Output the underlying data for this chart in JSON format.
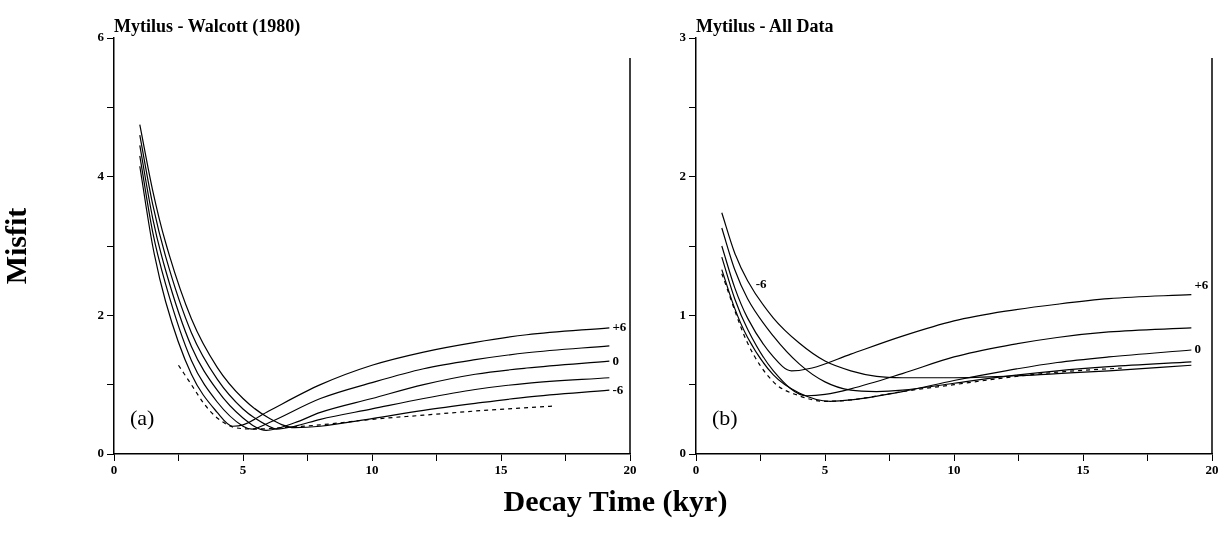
{
  "chart_data": [
    {
      "type": "line",
      "title": "Mytilus - Walcott (1980)",
      "ylabel": "Misfit",
      "xlabel": "Decay Time (kyr)",
      "xlim": [
        0,
        20
      ],
      "ylim": [
        0,
        6
      ],
      "xticks": [
        0,
        {
          "value": 2.5,
          "label": null
        },
        5,
        {
          "value": 7.5,
          "label": null
        },
        10,
        {
          "value": 12.5,
          "label": null
        },
        15,
        {
          "value": 17.5,
          "label": null
        },
        20
      ],
      "yticks": [
        0,
        {
          "value": 1,
          "label": null
        },
        2,
        {
          "value": 3,
          "label": null
        },
        4,
        {
          "value": 5,
          "label": null
        },
        6
      ],
      "grid": false,
      "legend": false,
      "marker": "none",
      "line_style": "solid",
      "series": [
        {
          "color": "#000000",
          "x": [
            1,
            1.5,
            2,
            3,
            4,
            4.6,
            5,
            6,
            8,
            10,
            12,
            14,
            16,
            19.2
          ],
          "values": [
            4.15,
            3.0,
            2.2,
            1.15,
            0.6,
            0.4,
            0.42,
            0.62,
            1.0,
            1.28,
            1.47,
            1.61,
            1.72,
            1.82
          ]
        },
        {
          "color": "#000000",
          "x": [
            1,
            1.5,
            2,
            3,
            4,
            5,
            5.35,
            6,
            8,
            10,
            12,
            14,
            16,
            19.2
          ],
          "values": [
            4.3,
            3.2,
            2.45,
            1.35,
            0.75,
            0.4,
            0.36,
            0.45,
            0.8,
            1.03,
            1.23,
            1.36,
            1.46,
            1.56
          ]
        },
        {
          "color": "#000000",
          "x": [
            1,
            1.5,
            2,
            3,
            4,
            5,
            5.9,
            7,
            8,
            10,
            12,
            14,
            16,
            19.2
          ],
          "values": [
            4.45,
            3.4,
            2.65,
            1.55,
            0.92,
            0.52,
            0.34,
            0.45,
            0.6,
            0.8,
            1.0,
            1.15,
            1.24,
            1.34
          ]
        },
        {
          "color": "#000000",
          "x": [
            1,
            1.5,
            2,
            3,
            4,
            5,
            6,
            6.3,
            7,
            8,
            10,
            12,
            14,
            16,
            19.2
          ],
          "values": [
            4.6,
            3.6,
            2.85,
            1.75,
            1.08,
            0.65,
            0.4,
            0.36,
            0.4,
            0.5,
            0.65,
            0.8,
            0.93,
            1.02,
            1.1
          ]
        },
        {
          "color": "#000000",
          "x": [
            1,
            1.5,
            2,
            3,
            4,
            5,
            6,
            7,
            8,
            10,
            12,
            14,
            16,
            19.2
          ],
          "values": [
            4.75,
            3.8,
            3.05,
            1.95,
            1.25,
            0.8,
            0.52,
            0.38,
            0.4,
            0.51,
            0.63,
            0.73,
            0.82,
            0.92
          ]
        },
        {
          "color": "#000000",
          "line_style": "dashed",
          "x": [
            2.5,
            3,
            3.5,
            4,
            4.7,
            5.5,
            6.5,
            8,
            10,
            12,
            14,
            17
          ],
          "values": [
            1.28,
            1.0,
            0.72,
            0.52,
            0.38,
            0.36,
            0.38,
            0.42,
            0.5,
            0.56,
            0.62,
            0.69
          ]
        }
      ],
      "annotations": [
        "+6",
        "0",
        "-6",
        "(a)"
      ]
    },
    {
      "type": "line",
      "title": "Mytilus - All Data",
      "xlim": [
        0,
        20
      ],
      "ylim": [
        0,
        3
      ],
      "xticks": [
        0,
        {
          "value": 2.5,
          "label": null
        },
        5,
        {
          "value": 7.5,
          "label": null
        },
        10,
        {
          "value": 12.5,
          "label": null
        },
        15,
        {
          "value": 17.5,
          "label": null
        },
        20
      ],
      "yticks": [
        0,
        {
          "value": 0.5,
          "label": null
        },
        1,
        {
          "value": 1.5,
          "label": null
        },
        2,
        {
          "value": 2.5,
          "label": null
        },
        3
      ],
      "grid": false,
      "legend": false,
      "marker": "none",
      "line_style": "solid",
      "series": [
        {
          "color": "#000000",
          "x": [
            1,
            1.5,
            2,
            3,
            4,
            5,
            6,
            7,
            8,
            10,
            12,
            14,
            16,
            19.2
          ],
          "values": [
            1.74,
            1.45,
            1.25,
            0.98,
            0.8,
            0.67,
            0.6,
            0.56,
            0.55,
            0.55,
            0.56,
            0.58,
            0.6,
            0.64
          ]
        },
        {
          "color": "#000000",
          "x": [
            1,
            1.5,
            2,
            3,
            4,
            5,
            6,
            7,
            8,
            10,
            12,
            14,
            16,
            19.2
          ],
          "values": [
            1.63,
            1.33,
            1.12,
            0.85,
            0.65,
            0.52,
            0.46,
            0.45,
            0.46,
            0.51,
            0.56,
            0.6,
            0.63,
            0.665
          ]
        },
        {
          "color": "#000000",
          "x": [
            1,
            1.5,
            2,
            3,
            3.7,
            4.5,
            6,
            8,
            10,
            12,
            14,
            16,
            19.2
          ],
          "values": [
            1.5,
            1.2,
            0.98,
            0.7,
            0.6,
            0.62,
            0.72,
            0.85,
            0.96,
            1.03,
            1.08,
            1.12,
            1.15
          ]
        },
        {
          "color": "#000000",
          "x": [
            1,
            1.5,
            2,
            3,
            4.3,
            5,
            6,
            8,
            10,
            12,
            14,
            16,
            19.2
          ],
          "values": [
            1.42,
            1.12,
            0.9,
            0.6,
            0.42,
            0.43,
            0.47,
            0.58,
            0.7,
            0.78,
            0.84,
            0.88,
            0.91
          ]
        },
        {
          "color": "#000000",
          "x": [
            1,
            1.5,
            2,
            3,
            4,
            5.2,
            6,
            8,
            10,
            12,
            14,
            16,
            19.2
          ],
          "values": [
            1.33,
            1.05,
            0.84,
            0.57,
            0.44,
            0.38,
            0.39,
            0.45,
            0.53,
            0.6,
            0.66,
            0.7,
            0.75
          ]
        },
        {
          "color": "#000000",
          "line_style": "dashed",
          "x": [
            1,
            2,
            3,
            4,
            5,
            6,
            8,
            10,
            12,
            14,
            16.5
          ],
          "values": [
            1.3,
            0.8,
            0.52,
            0.42,
            0.38,
            0.39,
            0.45,
            0.5,
            0.55,
            0.59,
            0.62
          ]
        }
      ],
      "annotations": [
        "+6",
        "0",
        "-6",
        "(b)"
      ]
    }
  ]
}
